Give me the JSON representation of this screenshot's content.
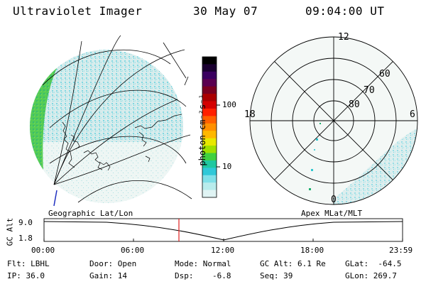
{
  "header": {
    "title": "Ultraviolet Imager",
    "date": "30 May 07",
    "time": "09:04:00 UT"
  },
  "colorbar": {
    "unit_label": "photon cm⁻²s⁻¹",
    "ticks": [
      "100",
      "10"
    ],
    "colors": [
      "#000000",
      "#1a0030",
      "#3a0060",
      "#5a0050",
      "#7a0020",
      "#aa0000",
      "#d40000",
      "#ff2000",
      "#ff6000",
      "#ff9000",
      "#ffb800",
      "#e8e800",
      "#a0e000",
      "#40d040",
      "#20c8a0",
      "#30c8d8",
      "#80e0e8",
      "#b8ecec",
      "#e0f4f4"
    ]
  },
  "geo_panel": {
    "label": "Geographic Lat/Lon"
  },
  "apex_panel": {
    "label": "Apex MLat/MLT",
    "mlt_labels": {
      "top": "12",
      "bottom": "0",
      "left": "18",
      "right": "6"
    },
    "lat_labels": [
      "60",
      "70",
      "80"
    ]
  },
  "orbit_plot": {
    "ylabel": "GC Alt",
    "yticks": [
      "9.0",
      "1.8"
    ],
    "xticks": [
      "00:00",
      "06:00",
      "12:00",
      "18:00",
      "23:59"
    ],
    "current_marker_time": "09:04"
  },
  "info": {
    "filter": "Flt: LBHL",
    "ip": "IP: 36.0",
    "door": "Door: Open",
    "gain": "Gain: 14",
    "mode": "Mode: Normal",
    "dsp": "Dsp:    -6.8",
    "gcalt": "GC Alt: 6.1 Re",
    "seq": "Seq: 39",
    "glat": "GLat:  -64.5",
    "glon": "GLon: 269.7"
  }
}
